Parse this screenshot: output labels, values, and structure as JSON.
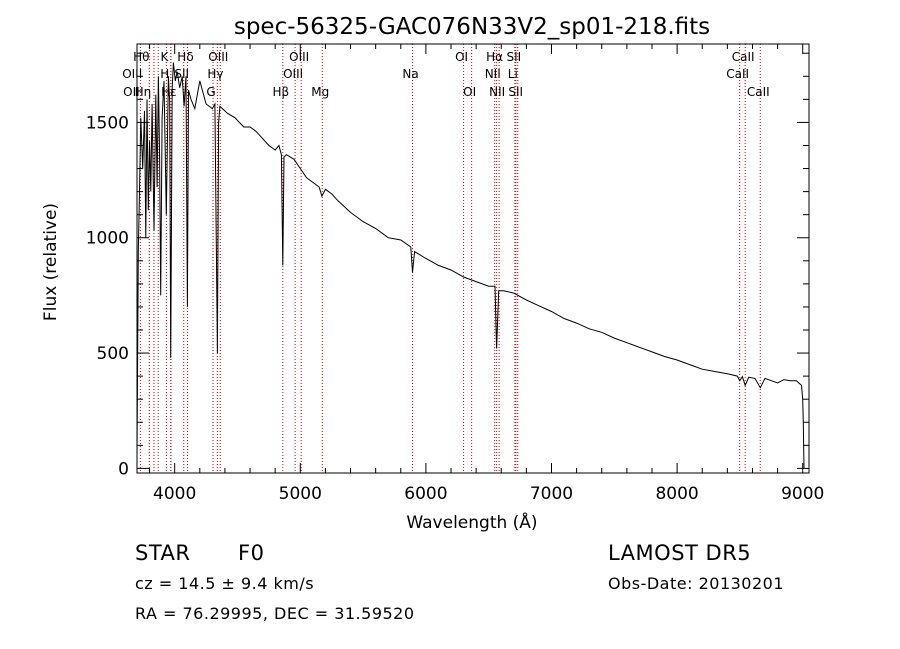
{
  "chart_data": {
    "type": "line",
    "title": "spec-56325-GAC076N33V2_sp01-218.fits",
    "xlabel": "Wavelength (Å)",
    "ylabel": "Flux (relative)",
    "xlim": [
      3700,
      9050
    ],
    "ylim": [
      -20,
      1840
    ],
    "xticks": [
      4000,
      5000,
      6000,
      7000,
      8000,
      9000
    ],
    "yticks": [
      0,
      500,
      1000,
      1500
    ],
    "grid": false,
    "series": [
      {
        "x": [
          3700,
          3710,
          3720,
          3730,
          3745,
          3760,
          3770,
          3780,
          3790,
          3800,
          3810,
          3820,
          3835,
          3850,
          3860,
          3870,
          3880,
          3889,
          3900,
          3915,
          3933,
          3950,
          3960,
          3968,
          3980,
          3990,
          4005,
          4020,
          4040,
          4060,
          4075,
          4090,
          4101,
          4110,
          4130,
          4160,
          4200,
          4250,
          4300,
          4320,
          4340,
          4350,
          4360,
          4380,
          4420,
          4480,
          4550,
          4600,
          4650,
          4700,
          4750,
          4800,
          4830,
          4850,
          4861,
          4870,
          4890,
          4950,
          5000,
          5050,
          5100,
          5150,
          5172,
          5200,
          5250,
          5300,
          5400,
          5500,
          5600,
          5700,
          5800,
          5880,
          5893,
          5910,
          6000,
          6100,
          6200,
          6300,
          6400,
          6500,
          6550,
          6563,
          6580,
          6620,
          6700,
          6750,
          6800,
          6900,
          7000,
          7100,
          7200,
          7300,
          7400,
          7500,
          7600,
          7700,
          7800,
          7900,
          8000,
          8100,
          8200,
          8300,
          8400,
          8480,
          8498,
          8520,
          8542,
          8570,
          8620,
          8662,
          8700,
          8750,
          8800,
          8850,
          8900,
          8950,
          8990,
          9000,
          9005,
          9010
        ],
        "y": [
          50,
          940,
          1200,
          1520,
          1300,
          1550,
          1000,
          1600,
          1120,
          1420,
          1200,
          1580,
          1030,
          1620,
          1220,
          1700,
          1350,
          750,
          1520,
          1680,
          1100,
          1700,
          1590,
          480,
          1650,
          1760,
          1680,
          1720,
          1650,
          1700,
          1570,
          1700,
          700,
          1640,
          1600,
          1560,
          1680,
          1580,
          1560,
          1580,
          500,
          1500,
          1570,
          1560,
          1540,
          1520,
          1480,
          1480,
          1460,
          1430,
          1400,
          1380,
          1400,
          1360,
          880,
          1350,
          1360,
          1340,
          1300,
          1260,
          1240,
          1220,
          1180,
          1210,
          1190,
          1160,
          1110,
          1070,
          1040,
          1000,
          990,
          960,
          850,
          940,
          910,
          880,
          860,
          830,
          810,
          790,
          790,
          520,
          770,
          770,
          760,
          745,
          730,
          705,
          680,
          650,
          630,
          605,
          590,
          565,
          545,
          525,
          505,
          485,
          470,
          450,
          430,
          420,
          410,
          400,
          380,
          398,
          360,
          395,
          390,
          350,
          390,
          380,
          370,
          385,
          380,
          380,
          360,
          300,
          200,
          0
        ]
      }
    ],
    "lines": [
      {
        "label": "OII",
        "x": 3727,
        "row": 2,
        "dx": -7
      },
      {
        "label": "Hθ",
        "x": 3798,
        "row": 0,
        "dx": -6
      },
      {
        "label": "OIII",
        "x": 3869,
        "row": 1,
        "dx": -24
      },
      {
        "label": "Hη",
        "x": 3835,
        "row": 2,
        "dx": -9
      },
      {
        "label": "K",
        "x": 3934,
        "row": 0,
        "dx": 0
      },
      {
        "label": "H",
        "x": 3969,
        "row": 1,
        "dx": -4
      },
      {
        "label": "Hε",
        "x": 3970,
        "row": 2,
        "dx": 0
      },
      {
        "label": "Hδ",
        "x": 4102,
        "row": 0,
        "dx": 0
      },
      {
        "label": "SII",
        "x": 4072,
        "row": 1,
        "dx": 0
      },
      {
        "label": "OIII",
        "x": 4363,
        "row": 0,
        "dx": 0
      },
      {
        "label": "Hγ",
        "x": 4340,
        "row": 1,
        "dx": 0
      },
      {
        "label": "G",
        "x": 4305,
        "row": 2,
        "dx": 0
      },
      {
        "label": "Hβ",
        "x": 4861,
        "row": 2,
        "dx": 0
      },
      {
        "label": "OIII",
        "x": 4959,
        "row": 1,
        "dx": 0
      },
      {
        "label": "OIII",
        "x": 5007,
        "row": 0,
        "dx": 0
      },
      {
        "label": "Mg",
        "x": 5175,
        "row": 2,
        "dx": 0
      },
      {
        "label": "Na",
        "x": 5894,
        "row": 1,
        "dx": 0
      },
      {
        "label": "OI",
        "x": 6300,
        "row": 0,
        "dx": 0
      },
      {
        "label": "OI",
        "x": 6364,
        "row": 2,
        "dx": 0
      },
      {
        "label": "Hα",
        "x": 6563,
        "row": 0,
        "dx": 0
      },
      {
        "label": "NII",
        "x": 6548,
        "row": 1,
        "dx": 0
      },
      {
        "label": "NII",
        "x": 6583,
        "row": 2,
        "dx": 0
      },
      {
        "label": "SII",
        "x": 6716,
        "row": 0,
        "dx": 0
      },
      {
        "label": "Li",
        "x": 6708,
        "row": 1,
        "dx": 0
      },
      {
        "label": "SII",
        "x": 6731,
        "row": 2,
        "dx": 0
      },
      {
        "label": "CaII",
        "x": 8498,
        "row": 1,
        "dx": 0
      },
      {
        "label": "CaII",
        "x": 8542,
        "row": 0,
        "dx": 0
      },
      {
        "label": "CaII",
        "x": 8662,
        "row": 2,
        "dx": 0
      }
    ],
    "line_color": "#cc0000",
    "spectrum_color": "#000000"
  },
  "info": {
    "class_label": "STAR",
    "subclass_label": "F0",
    "survey": "LAMOST DR5",
    "redshift_line": "cz = 14.5 ± 9.4 km/s",
    "obs_date_line": "Obs-Date: 20130201",
    "coords_line": "RA =  76.29995, DEC =  31.59520"
  }
}
